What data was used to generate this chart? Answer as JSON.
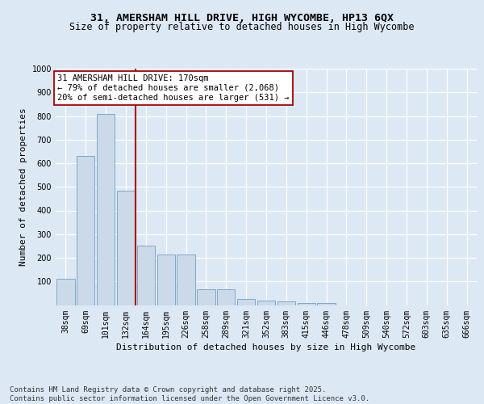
{
  "title_line1": "31, AMERSHAM HILL DRIVE, HIGH WYCOMBE, HP13 6QX",
  "title_line2": "Size of property relative to detached houses in High Wycombe",
  "xlabel": "Distribution of detached houses by size in High Wycombe",
  "ylabel": "Number of detached properties",
  "categories": [
    "38sqm",
    "69sqm",
    "101sqm",
    "132sqm",
    "164sqm",
    "195sqm",
    "226sqm",
    "258sqm",
    "289sqm",
    "321sqm",
    "352sqm",
    "383sqm",
    "415sqm",
    "446sqm",
    "478sqm",
    "509sqm",
    "540sqm",
    "572sqm",
    "603sqm",
    "635sqm",
    "666sqm"
  ],
  "values": [
    110,
    630,
    810,
    485,
    250,
    215,
    215,
    65,
    65,
    25,
    20,
    15,
    10,
    10,
    0,
    0,
    0,
    0,
    0,
    0,
    0
  ],
  "bar_color": "#ccd9e8",
  "bar_edge_color": "#7aaac8",
  "vline_index": 3.5,
  "vline_color": "#aa0000",
  "annotation_text": "31 AMERSHAM HILL DRIVE: 170sqm\n← 79% of detached houses are smaller (2,068)\n20% of semi-detached houses are larger (531) →",
  "annotation_box_facecolor": "#ffffff",
  "annotation_box_edgecolor": "#aa0000",
  "ylim": [
    0,
    1000
  ],
  "yticks": [
    100,
    200,
    300,
    400,
    500,
    600,
    700,
    800,
    900,
    1000
  ],
  "background_color": "#dde8f5",
  "footer_text": "Contains HM Land Registry data © Crown copyright and database right 2025.\nContains public sector information licensed under the Open Government Licence v3.0.",
  "title_fontsize": 9.5,
  "subtitle_fontsize": 8.5,
  "axis_label_fontsize": 8,
  "tick_fontsize": 7,
  "annotation_fontsize": 7.5,
  "footer_fontsize": 6.5
}
